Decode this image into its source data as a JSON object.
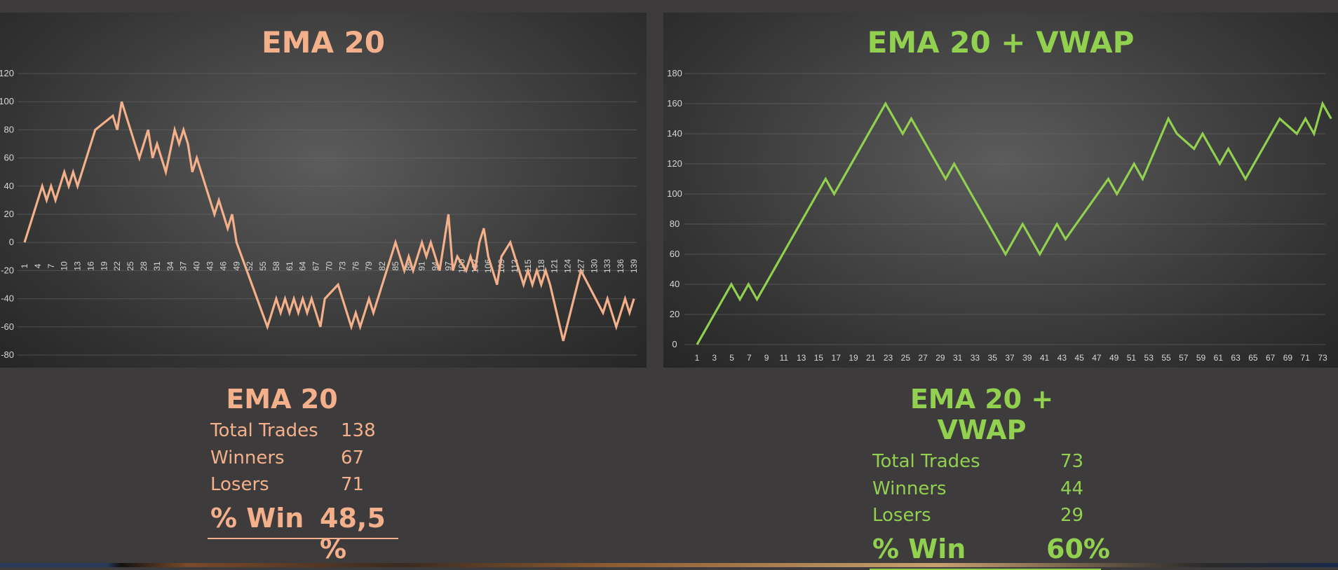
{
  "colors": {
    "ema": "#f4b08a",
    "vwap": "#92d050",
    "background": "#3d3b3c",
    "grid": "#6a6a6a"
  },
  "chart_data": [
    {
      "type": "line",
      "title": "EMA 20",
      "xlabel": "",
      "ylabel": "",
      "ylim": [
        -80,
        120
      ],
      "yticks": [
        120,
        100,
        80,
        60,
        40,
        20,
        0,
        -20,
        -40,
        -60,
        -80
      ],
      "xlim": [
        1,
        139
      ],
      "xtick_labels": [
        "1",
        "4",
        "7",
        "10",
        "13",
        "16",
        "19",
        "22",
        "25",
        "28",
        "31",
        "34",
        "37",
        "40",
        "43",
        "46",
        "49",
        "52",
        "55",
        "58",
        "61",
        "64",
        "67",
        "70",
        "73",
        "76",
        "79",
        "82",
        "85",
        "88",
        "91",
        "94",
        "97",
        "100",
        "103",
        "106",
        "109",
        "112",
        "115",
        "118",
        "121",
        "124",
        "127",
        "130",
        "133",
        "136",
        "139"
      ],
      "grid": true,
      "series": [
        {
          "x": [
            1,
            5,
            6,
            7,
            8,
            9,
            10,
            11,
            12,
            13,
            14,
            15,
            16,
            17,
            21,
            22,
            23,
            27,
            29,
            30,
            31,
            32,
            33,
            35,
            36,
            37,
            38,
            39,
            40,
            41,
            44,
            45,
            46,
            47,
            48,
            49,
            56,
            57,
            58,
            59,
            60,
            61,
            62,
            63,
            64,
            65,
            66,
            67,
            68,
            69,
            72,
            73,
            74,
            75,
            76,
            77,
            78,
            79,
            80,
            85,
            86,
            87,
            88,
            89,
            90,
            91,
            92,
            93,
            94,
            95,
            96,
            97,
            98,
            99,
            101,
            102,
            103,
            104,
            105,
            106,
            107,
            108,
            109,
            111,
            112,
            113,
            114,
            115,
            116,
            117,
            118,
            119,
            120,
            123,
            127,
            132,
            133,
            134,
            135,
            136,
            137,
            138,
            139
          ],
          "values": [
            0,
            40,
            30,
            40,
            30,
            40,
            50,
            40,
            50,
            40,
            50,
            60,
            70,
            80,
            90,
            80,
            100,
            60,
            80,
            60,
            70,
            60,
            50,
            80,
            70,
            80,
            70,
            50,
            60,
            50,
            20,
            30,
            20,
            10,
            20,
            0,
            -60,
            -50,
            -40,
            -50,
            -40,
            -50,
            -40,
            -50,
            -40,
            -50,
            -40,
            -50,
            -60,
            -40,
            -30,
            -40,
            -50,
            -60,
            -50,
            -60,
            -50,
            -40,
            -50,
            0,
            -10,
            -20,
            -10,
            -20,
            -10,
            0,
            -10,
            0,
            -10,
            -20,
            0,
            20,
            -20,
            -10,
            -20,
            -10,
            -20,
            0,
            10,
            -10,
            -20,
            -30,
            -10,
            0,
            -10,
            -20,
            -30,
            -20,
            -30,
            -20,
            -30,
            -20,
            -30,
            -70,
            -20,
            -50,
            -40,
            -50,
            -60,
            -50,
            -40,
            -50,
            -40
          ]
        }
      ]
    },
    {
      "type": "line",
      "title": "EMA 20 + VWAP",
      "xlabel": "",
      "ylabel": "",
      "ylim": [
        0,
        180
      ],
      "yticks": [
        180,
        160,
        140,
        120,
        100,
        80,
        60,
        40,
        20,
        0
      ],
      "xlim": [
        1,
        74
      ],
      "xtick_labels": [
        "1",
        "3",
        "5",
        "7",
        "9",
        "11",
        "13",
        "15",
        "17",
        "19",
        "21",
        "23",
        "25",
        "27",
        "29",
        "31",
        "33",
        "35",
        "37",
        "39",
        "41",
        "43",
        "45",
        "47",
        "49",
        "51",
        "53",
        "55",
        "57",
        "59",
        "61",
        "63",
        "65",
        "67",
        "69",
        "71",
        "73"
      ],
      "grid": true,
      "series": [
        {
          "x": [
            1,
            5,
            6,
            7,
            8,
            16,
            17,
            23,
            25,
            26,
            30,
            31,
            37,
            39,
            41,
            43,
            44,
            49,
            50,
            52,
            53,
            56,
            57,
            59,
            60,
            62,
            63,
            65,
            66,
            69,
            71,
            72,
            73,
            74,
            75
          ],
          "values": [
            0,
            40,
            30,
            40,
            30,
            110,
            100,
            160,
            140,
            150,
            110,
            120,
            60,
            80,
            60,
            80,
            70,
            110,
            100,
            120,
            110,
            150,
            140,
            130,
            140,
            120,
            130,
            110,
            120,
            150,
            140,
            150,
            140,
            160,
            150
          ]
        }
      ]
    }
  ],
  "stats": {
    "ema": {
      "title": "EMA 20",
      "total_trades_label": "Total Trades",
      "total_trades": "138",
      "winners_label": "Winners",
      "winners": "67",
      "losers_label": "Losers",
      "losers": "71",
      "win_label": "% Win",
      "win_value": "48,5 %"
    },
    "vwap": {
      "title": "EMA 20 + VWAP",
      "total_trades_label": "Total Trades",
      "total_trades": "73",
      "winners_label": "Winners",
      "winners": "44",
      "losers_label": "Losers",
      "losers": "29",
      "win_label": "% Win",
      "win_value": "60%"
    }
  }
}
